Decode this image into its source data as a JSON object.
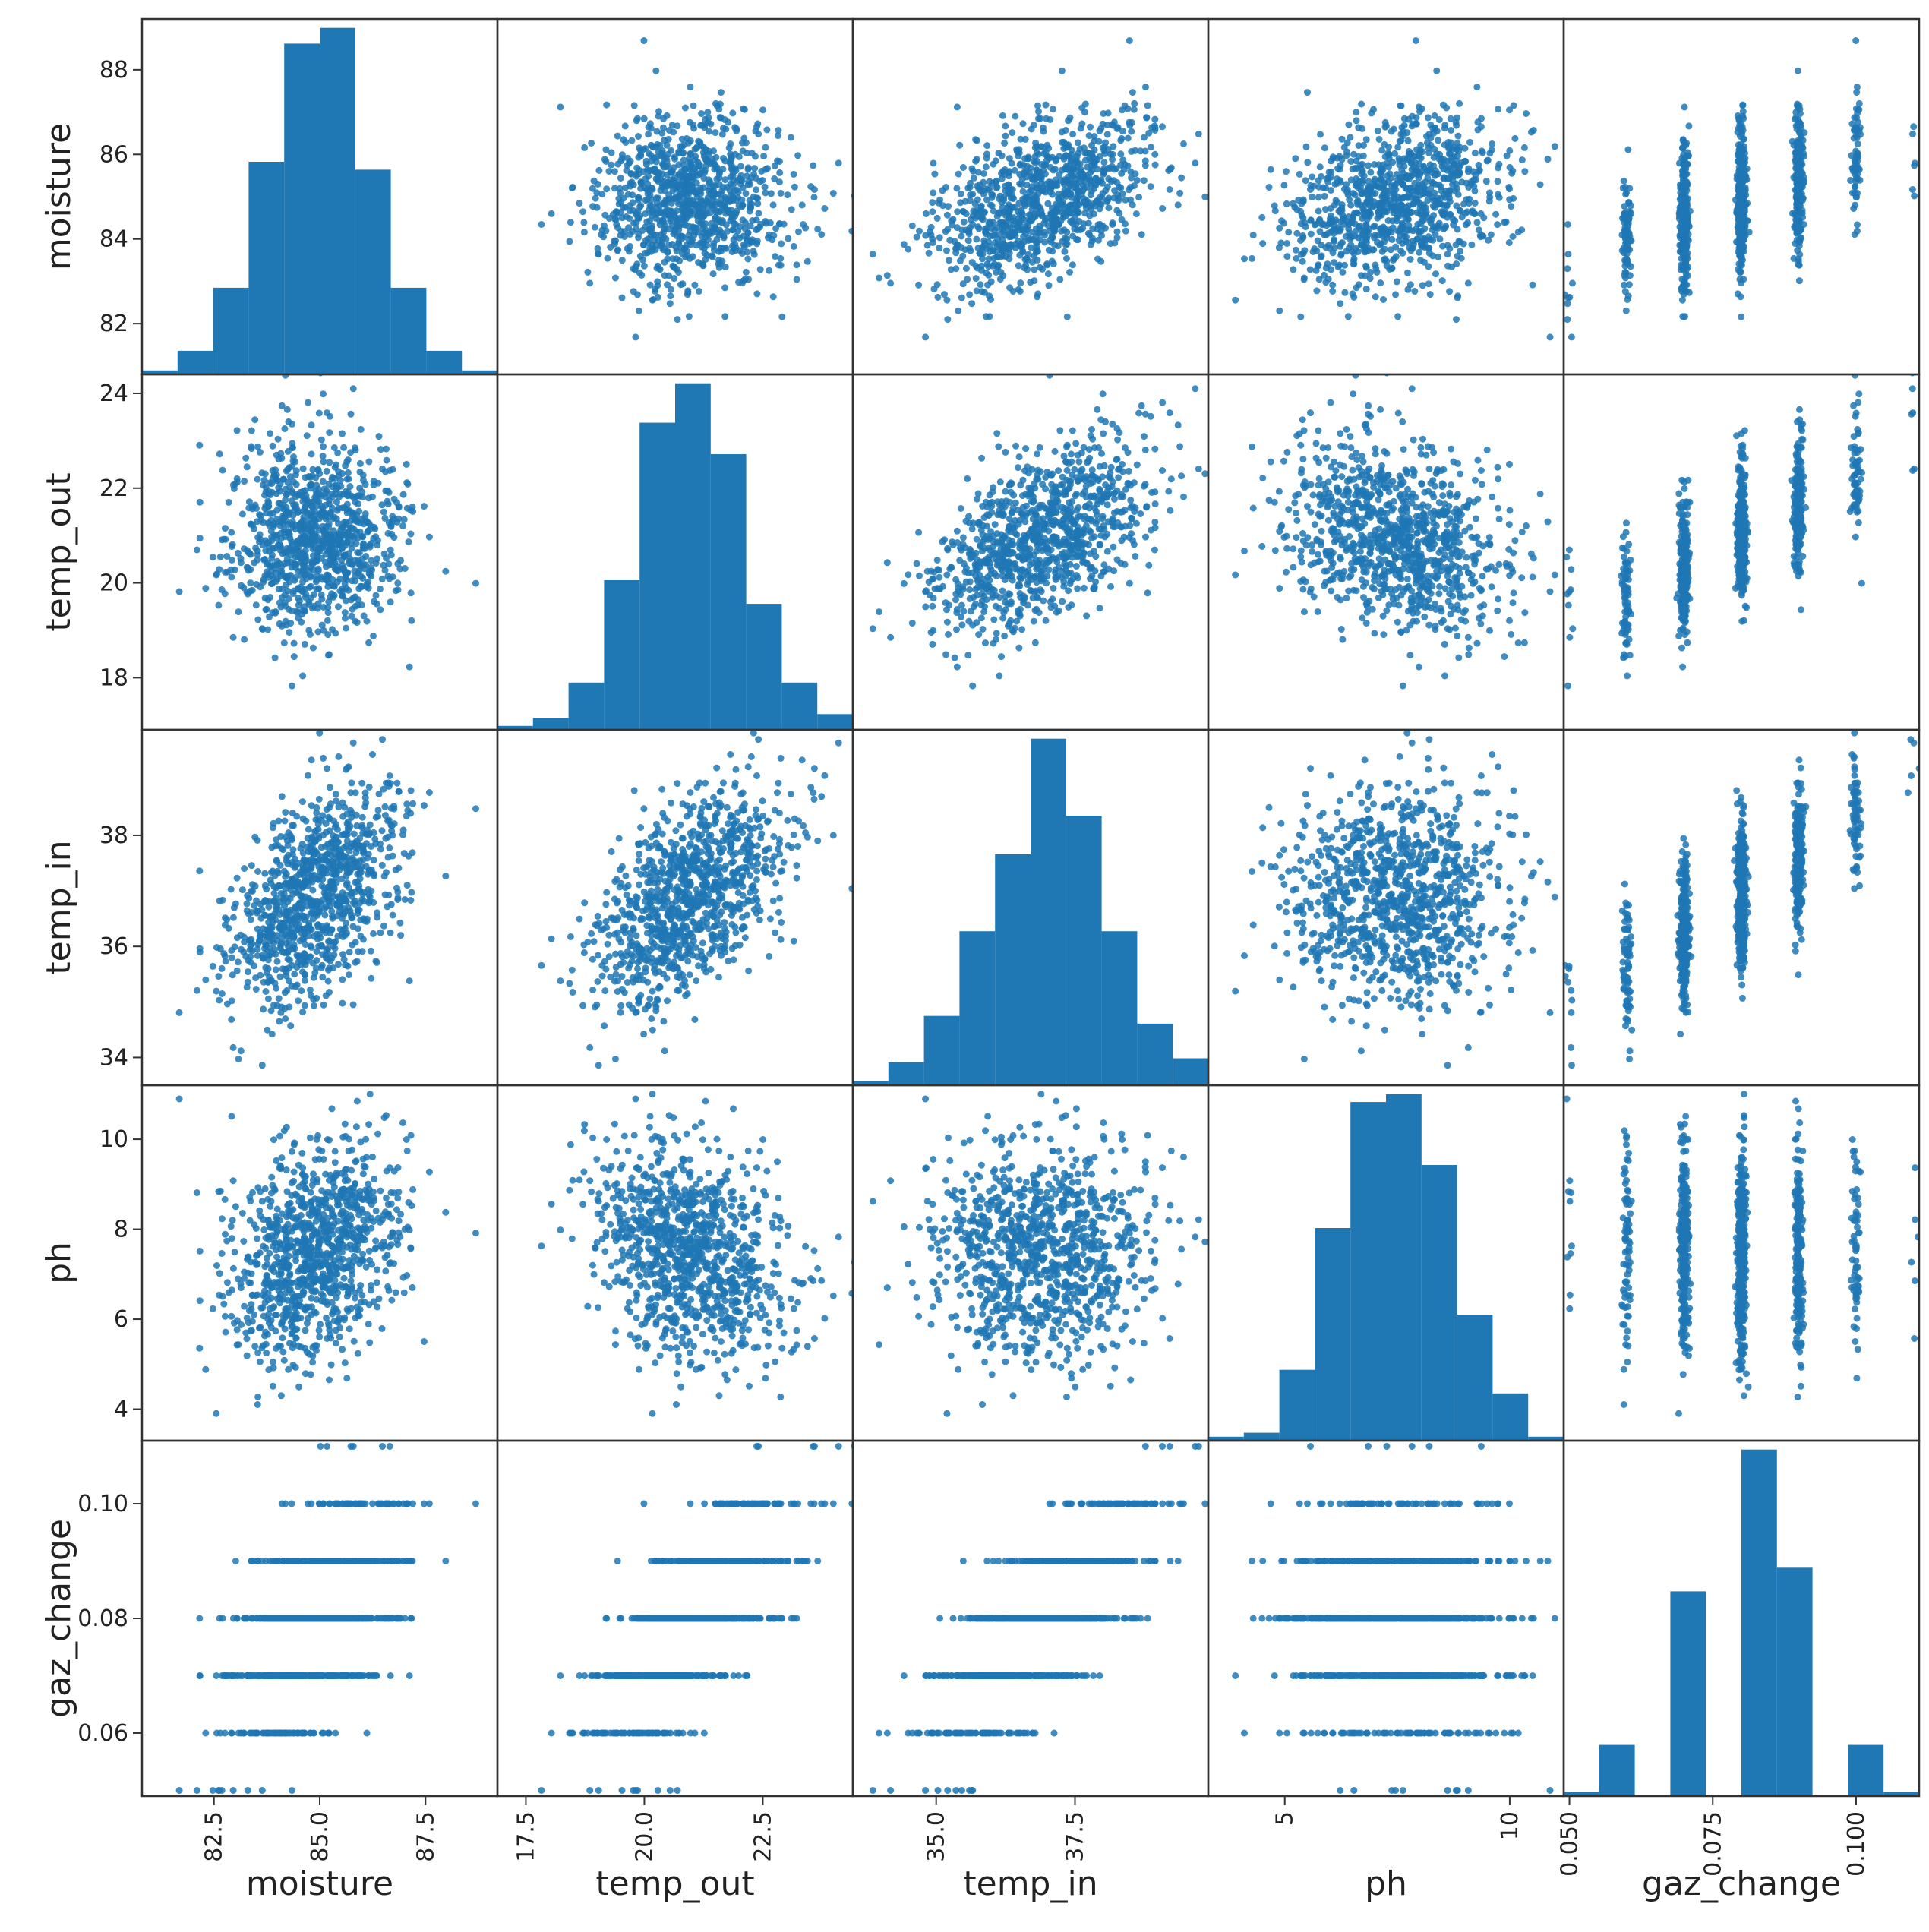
{
  "chart_data": {
    "type": "scatter_matrix",
    "sample_count": 1000,
    "point_color": "#1f77b4",
    "bar_color": "#1f77b4",
    "grid": false,
    "variables": [
      {
        "name": "moisture",
        "label": "moisture",
        "range": [
          80.8,
          89.2
        ],
        "y_ticks": [
          82,
          84,
          86,
          88
        ],
        "y_tick_labels": [
          "82",
          "84",
          "86",
          "88"
        ],
        "x_ticks": [
          82.5,
          85.0,
          87.5
        ],
        "x_tick_labels": [
          "82.5",
          "85.0",
          "87.5"
        ],
        "mean": 85.0,
        "sd": 1.0,
        "hist_counts": [
          5,
          30,
          110,
          270,
          420,
          440,
          260,
          110,
          30,
          5
        ]
      },
      {
        "name": "temp_out",
        "label": "temp_out",
        "range": [
          16.9,
          24.4
        ],
        "y_ticks": [
          18,
          20,
          22,
          24
        ],
        "y_tick_labels": [
          "18",
          "20",
          "22",
          "24"
        ],
        "x_ticks": [
          17.5,
          20.0,
          22.5
        ],
        "x_tick_labels": [
          "17.5",
          "20.0",
          "22.5"
        ],
        "mean": 21.0,
        "sd": 1.0,
        "hist_counts": [
          5,
          15,
          60,
          190,
          390,
          440,
          350,
          160,
          60,
          20
        ]
      },
      {
        "name": "temp_in",
        "label": "temp_in",
        "range": [
          33.5,
          39.9
        ],
        "y_ticks": [
          34,
          36,
          38
        ],
        "y_tick_labels": [
          "34",
          "36",
          "38"
        ],
        "x_ticks": [
          35.0,
          37.5
        ],
        "x_tick_labels": [
          "35.0",
          "37.5"
        ],
        "mean": 37.0,
        "sd": 1.0,
        "hist_counts": [
          5,
          30,
          90,
          200,
          300,
          450,
          350,
          200,
          80,
          35
        ]
      },
      {
        "name": "ph",
        "label": "ph",
        "range": [
          3.3,
          11.2
        ],
        "y_ticks": [
          4,
          6,
          8,
          10
        ],
        "y_tick_labels": [
          "4",
          "6",
          "8",
          "10"
        ],
        "x_ticks": [
          5,
          10
        ],
        "x_tick_labels": [
          "5",
          "10"
        ],
        "mean": 7.5,
        "sd": 1.2,
        "hist_counts": [
          5,
          10,
          90,
          270,
          430,
          440,
          350,
          160,
          60,
          5
        ]
      },
      {
        "name": "gaz_change",
        "label": "gaz_change",
        "range": [
          0.049,
          0.111
        ],
        "y_ticks": [
          0.06,
          0.08,
          0.1
        ],
        "y_tick_labels": [
          "0.06",
          "0.08",
          "0.10"
        ],
        "x_ticks": [
          0.05,
          0.075,
          0.1
        ],
        "x_tick_labels": [
          "0.050",
          "0.075",
          "0.100"
        ],
        "discrete_levels": [
          0.05,
          0.06,
          0.07,
          0.08,
          0.09,
          0.1,
          0.11
        ],
        "level_counts": [
          5,
          65,
          260,
          440,
          290,
          65,
          5
        ],
        "hist_counts": [
          5,
          65,
          0,
          260,
          0,
          440,
          290,
          0,
          65,
          5
        ]
      }
    ],
    "correlations": {
      "moisture|temp_out": 0.1,
      "moisture|temp_in": 0.45,
      "moisture|ph": 0.25,
      "moisture|gaz_change": 0.6,
      "temp_out|temp_in": 0.62,
      "temp_out|ph": 0.1,
      "temp_out|gaz_change": 0.7,
      "temp_in|ph": -0.05,
      "temp_in|gaz_change": 0.75,
      "ph|gaz_change": 0.35
    },
    "diagonal": "hist"
  }
}
